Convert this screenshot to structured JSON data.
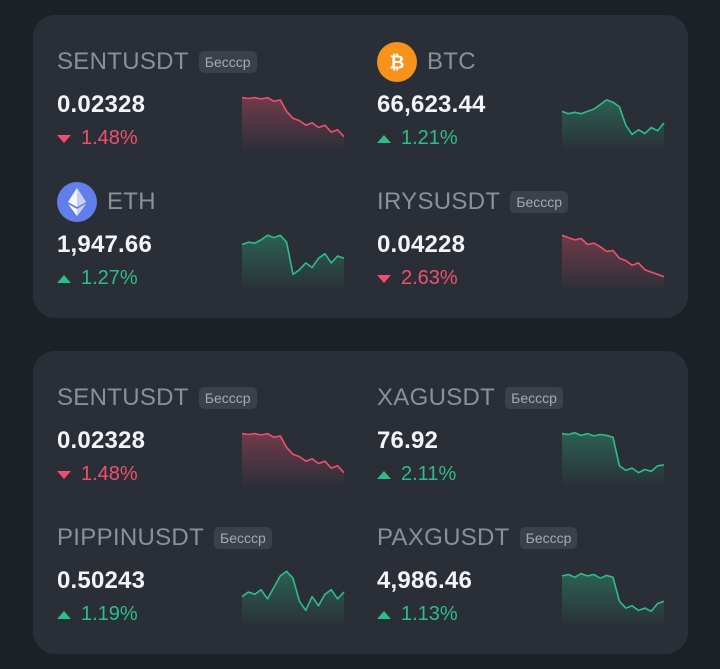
{
  "colors": {
    "up": "#2ebd85",
    "down": "#f0506e",
    "background": "#1c2027",
    "card": "#2a2f37"
  },
  "cards": [
    {
      "tiles": [
        {
          "symbol": "SENTUSDT",
          "badge": "Бессср",
          "icon": null,
          "price": "0.02328",
          "change": "1.48%",
          "direction": "down",
          "spark": [
            0.9,
            0.88,
            0.9,
            0.87,
            0.9,
            0.82,
            0.85,
            0.6,
            0.45,
            0.4,
            0.3,
            0.35,
            0.25,
            0.3,
            0.15,
            0.2,
            0.05
          ]
        },
        {
          "symbol": "BTC",
          "badge": null,
          "icon": "bitcoin-icon",
          "price": "66,623.44",
          "change": "1.21%",
          "direction": "up",
          "spark": [
            0.6,
            0.55,
            0.58,
            0.55,
            0.6,
            0.65,
            0.75,
            0.85,
            0.8,
            0.7,
            0.3,
            0.1,
            0.2,
            0.12,
            0.25,
            0.18,
            0.35
          ]
        },
        {
          "symbol": "ETH",
          "badge": null,
          "icon": "ethereum-icon",
          "price": "1,947.66",
          "change": "1.27%",
          "direction": "up",
          "spark": [
            0.75,
            0.8,
            0.78,
            0.85,
            0.95,
            0.9,
            0.95,
            0.8,
            0.1,
            0.2,
            0.35,
            0.25,
            0.45,
            0.55,
            0.35,
            0.5,
            0.45
          ]
        },
        {
          "symbol": "IRYSUSDT",
          "badge": "Бессср",
          "icon": null,
          "price": "0.04228",
          "change": "2.63%",
          "direction": "down",
          "spark": [
            0.95,
            0.9,
            0.85,
            0.88,
            0.75,
            0.78,
            0.7,
            0.6,
            0.62,
            0.45,
            0.4,
            0.3,
            0.35,
            0.2,
            0.15,
            0.1,
            0.05
          ]
        }
      ]
    },
    {
      "tiles": [
        {
          "symbol": "SENTUSDT",
          "badge": "Бессср",
          "icon": null,
          "price": "0.02328",
          "change": "1.48%",
          "direction": "down",
          "spark": [
            0.9,
            0.88,
            0.9,
            0.87,
            0.9,
            0.82,
            0.85,
            0.6,
            0.45,
            0.4,
            0.3,
            0.35,
            0.25,
            0.3,
            0.15,
            0.2,
            0.05
          ]
        },
        {
          "symbol": "XAGUSDT",
          "badge": "Бессср",
          "icon": null,
          "price": "76.92",
          "change": "2.11%",
          "direction": "up",
          "spark": [
            0.9,
            0.88,
            0.92,
            0.86,
            0.9,
            0.85,
            0.88,
            0.86,
            0.82,
            0.2,
            0.1,
            0.15,
            0.05,
            0.12,
            0.08,
            0.2,
            0.22
          ]
        },
        {
          "symbol": "PIPPINUSDT",
          "badge": "Бессср",
          "icon": null,
          "price": "0.50243",
          "change": "1.19%",
          "direction": "up",
          "spark": [
            0.4,
            0.5,
            0.45,
            0.55,
            0.35,
            0.6,
            0.85,
            0.95,
            0.8,
            0.3,
            0.1,
            0.4,
            0.2,
            0.45,
            0.55,
            0.35,
            0.5
          ]
        },
        {
          "symbol": "PAXGUSDT",
          "badge": "Бессср",
          "icon": null,
          "price": "4,986.46",
          "change": "1.13%",
          "direction": "up",
          "spark": [
            0.85,
            0.88,
            0.82,
            0.9,
            0.85,
            0.88,
            0.8,
            0.86,
            0.82,
            0.3,
            0.15,
            0.2,
            0.1,
            0.15,
            0.08,
            0.25,
            0.3
          ]
        }
      ]
    }
  ]
}
